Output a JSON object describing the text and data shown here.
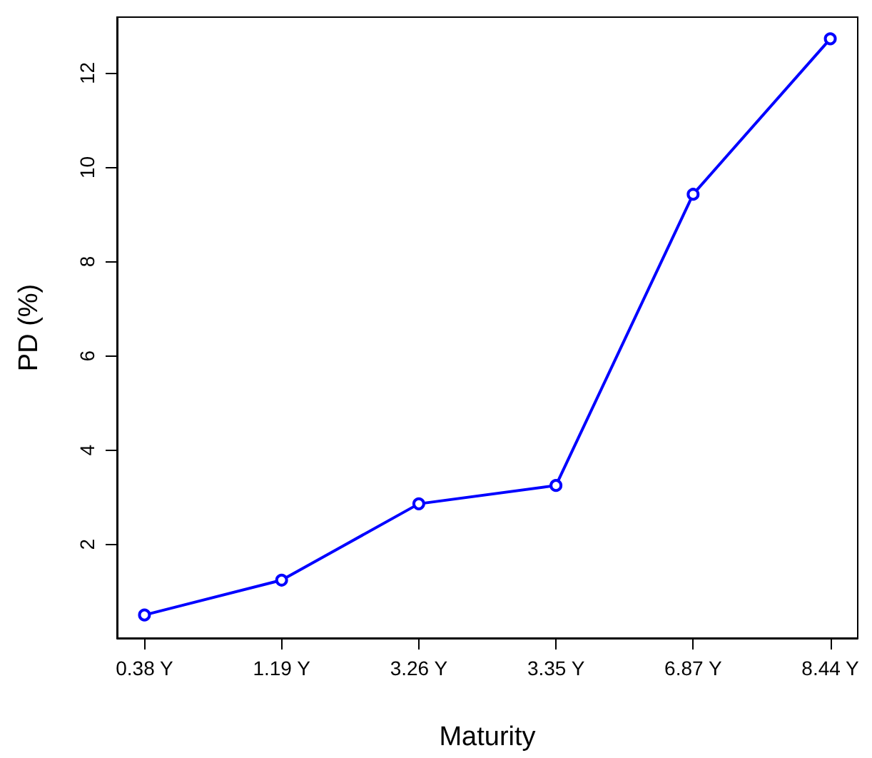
{
  "chart_data": {
    "type": "line",
    "xlabel": "Maturity",
    "ylabel": "PD (%)",
    "categories": [
      "0.38 Y",
      "1.19 Y",
      "3.26 Y",
      "3.35 Y",
      "6.87 Y",
      "8.44 Y"
    ],
    "series": [
      {
        "color": "#0000ff",
        "values": [
          0.5,
          1.24,
          2.86,
          3.25,
          9.43,
          12.73
        ]
      }
    ],
    "ylim": [
      0.01,
      13.19
    ],
    "yticks": [
      2,
      4,
      6,
      8,
      10,
      12
    ],
    "marker": "circle",
    "line_style": "solid",
    "grid": false
  }
}
